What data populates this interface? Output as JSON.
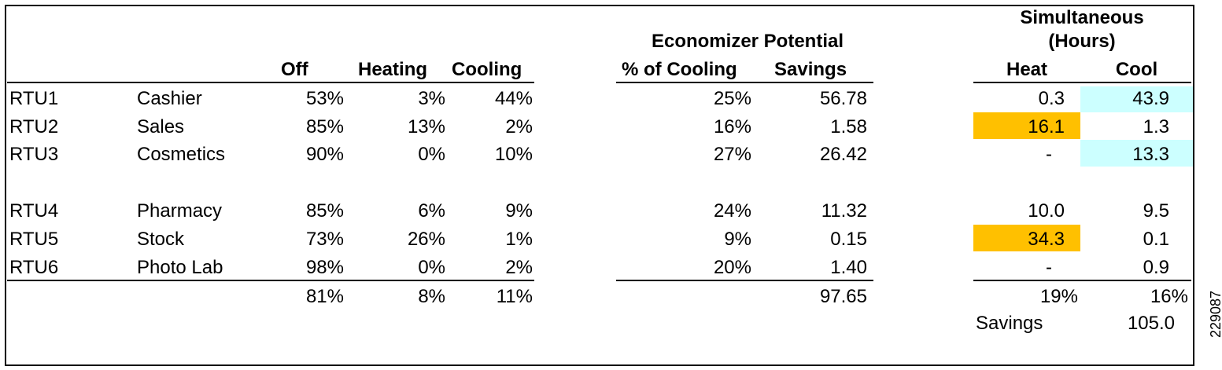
{
  "headers": {
    "off": "Off",
    "heating": "Heating",
    "cooling": "Cooling",
    "economizer_group": "Economizer Potential",
    "pct_cooling": "% of Cooling",
    "savings": "Savings",
    "simultaneous_line1": "Simultaneous",
    "simultaneous_line2": "(Hours)",
    "heat": "Heat",
    "cool": "Cool"
  },
  "rows": [
    {
      "unit": "RTU1",
      "area": "Cashier",
      "off": "53%",
      "heating": "3%",
      "cooling": "44%",
      "econ_pct": "25%",
      "econ_savings": "56.78",
      "heat": "0.3",
      "cool": "43.9"
    },
    {
      "unit": "RTU2",
      "area": "Sales",
      "off": "85%",
      "heating": "13%",
      "cooling": "2%",
      "econ_pct": "16%",
      "econ_savings": "1.58",
      "heat": "16.1",
      "cool": "1.3"
    },
    {
      "unit": "RTU3",
      "area": "Cosmetics",
      "off": "90%",
      "heating": "0%",
      "cooling": "10%",
      "econ_pct": "27%",
      "econ_savings": "26.42",
      "heat": "-",
      "cool": "13.3"
    },
    {
      "unit": "RTU4",
      "area": "Pharmacy",
      "off": "85%",
      "heating": "6%",
      "cooling": "9%",
      "econ_pct": "24%",
      "econ_savings": "11.32",
      "heat": "10.0",
      "cool": "9.5"
    },
    {
      "unit": "RTU5",
      "area": "Stock",
      "off": "73%",
      "heating": "26%",
      "cooling": "1%",
      "econ_pct": "9%",
      "econ_savings": "0.15",
      "heat": "34.3",
      "cool": "0.1"
    },
    {
      "unit": "RTU6",
      "area": "Photo Lab",
      "off": "98%",
      "heating": "0%",
      "cooling": "2%",
      "econ_pct": "20%",
      "econ_savings": "1.40",
      "heat": "-",
      "cool": "0.9"
    }
  ],
  "totals": {
    "off": "81%",
    "heating": "8%",
    "cooling": "11%",
    "econ_savings": "97.65",
    "heat": "19%",
    "cool": "16%"
  },
  "simultaneous_savings": {
    "label": "Savings",
    "value": "105.0"
  },
  "figure_id": "229087",
  "colors": {
    "heat_highlight": "#ffc000",
    "cool_highlight": "#ccffff"
  }
}
